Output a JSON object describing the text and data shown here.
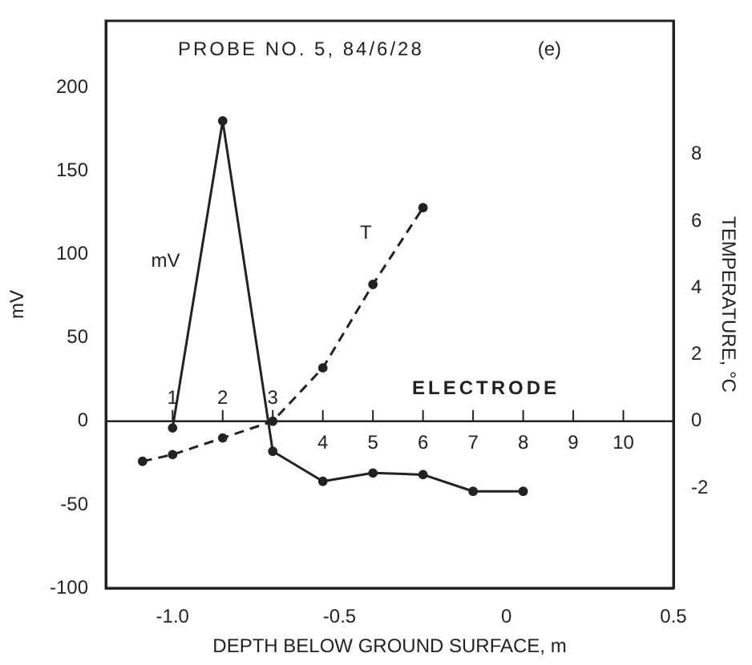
{
  "chart_data": {
    "type": "line",
    "title": "PROBE NO. 5, 84/6/28",
    "xlabel": "DEPTH BELOW GROUND SURFACE, m",
    "ylabel": "mV",
    "y2label": "TEMPERATURE, °C",
    "xlim": [
      -1.2,
      0.5
    ],
    "xticks": [
      {
        "value": -1.0,
        "label": "-1.0"
      },
      -0.5,
      0,
      0.5
    ],
    "ylim": [
      -100,
      240
    ],
    "yticks": [
      -100,
      -50,
      0,
      50,
      100,
      150,
      200
    ],
    "y2lim": [
      -5,
      12
    ],
    "y2ticks": [
      -2,
      0,
      2,
      4,
      6,
      8
    ],
    "grid": false,
    "legend": false,
    "marker": "circle",
    "series": [
      {
        "name": "mV",
        "color": "#222222",
        "line_style": "solid",
        "x": [
          -1.0,
          -0.85,
          -0.7,
          -0.55,
          -0.4,
          -0.25,
          -0.1,
          0.05
        ],
        "values": [
          -4,
          180,
          -18,
          -36,
          -31,
          -32,
          -42,
          -42
        ]
      },
      {
        "name": "T",
        "color": "#222222",
        "line_style": "dashed",
        "axis": "y2",
        "x": [
          -1.09,
          -1.0,
          -0.85,
          -0.7,
          -0.55,
          -0.4,
          -0.25
        ],
        "values": [
          -1.2,
          -1.0,
          -0.5,
          0,
          1.6,
          4.1,
          6.4
        ]
      }
    ],
    "ref_lines": [
      {
        "axis": "y",
        "value": 0,
        "color": "#222222"
      }
    ],
    "annotations": [
      "(e)",
      "ELECTRODE",
      {
        "text": "1",
        "x": -1.0,
        "y": 0
      },
      {
        "text": "2",
        "x": -0.85,
        "y": 0
      },
      {
        "text": "3",
        "x": -0.7,
        "y": 0
      },
      {
        "text": "4",
        "x": -0.55,
        "y": 0
      },
      {
        "text": "5",
        "x": -0.4,
        "y": 0
      },
      {
        "text": "6",
        "x": -0.25,
        "y": 0
      },
      {
        "text": "7",
        "x": -0.1,
        "y": 0
      },
      {
        "text": "8",
        "x": 0.05,
        "y": 0
      },
      {
        "text": "9",
        "x": 0.2,
        "y": 0
      },
      {
        "text": "10",
        "x": 0.35,
        "y": 0
      }
    ]
  }
}
